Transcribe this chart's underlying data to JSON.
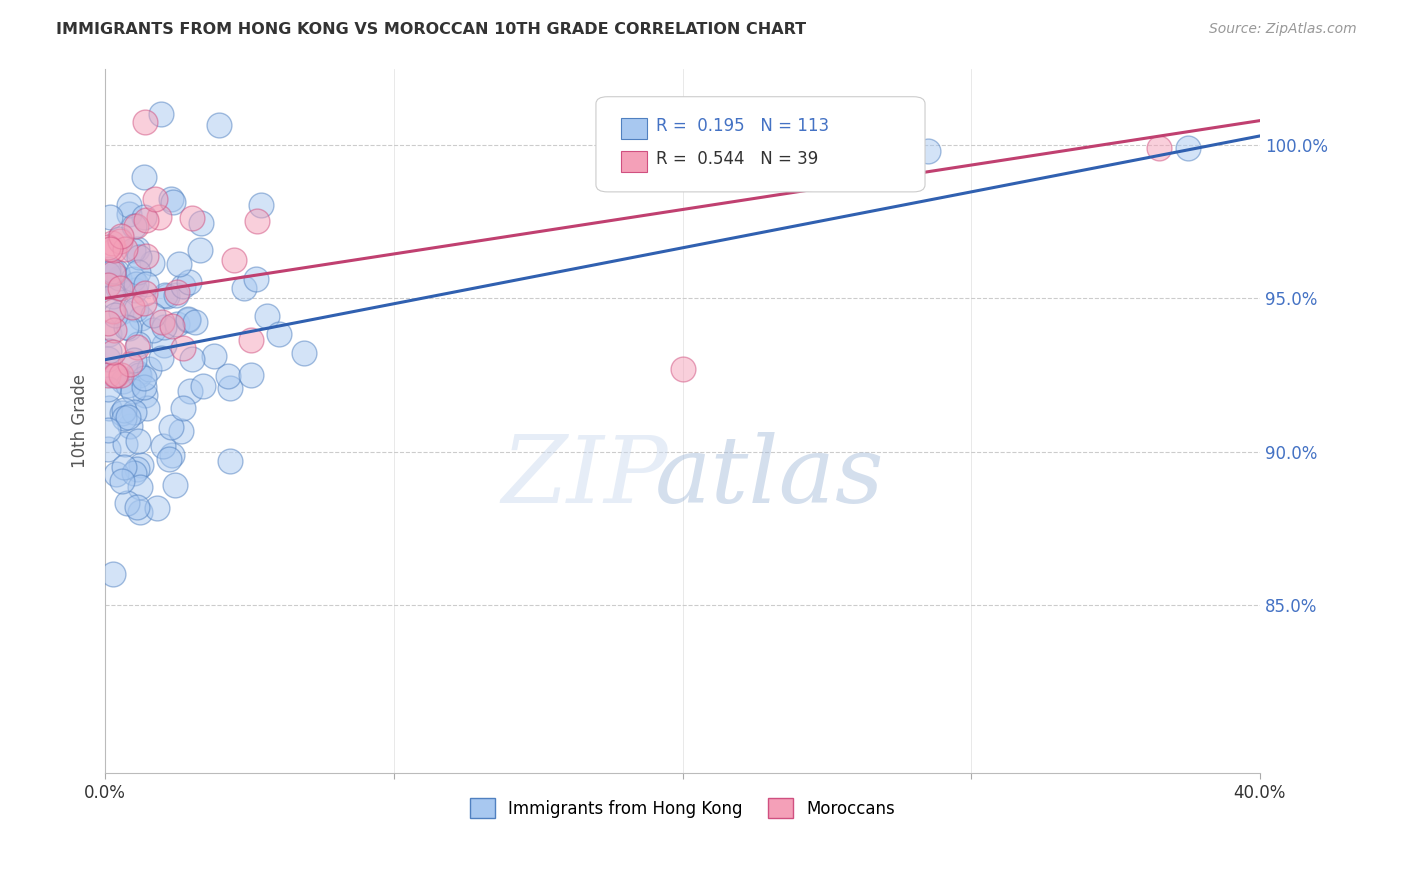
{
  "title": "IMMIGRANTS FROM HONG KONG VS MOROCCAN 10TH GRADE CORRELATION CHART",
  "source": "Source: ZipAtlas.com",
  "ylabel": "10th Grade",
  "yaxis_labels": [
    "100.0%",
    "95.0%",
    "90.0%",
    "85.0%"
  ],
  "yaxis_values": [
    1.0,
    0.95,
    0.9,
    0.85
  ],
  "legend_label_blue": "Immigrants from Hong Kong",
  "legend_label_pink": "Moroccans",
  "r_blue": 0.195,
  "n_blue": 113,
  "r_pink": 0.544,
  "n_pink": 39,
  "color_blue": "#A8C8F0",
  "color_pink": "#F4A0B8",
  "edge_blue": "#5080C0",
  "edge_pink": "#D05080",
  "line_blue": "#3060B0",
  "line_pink": "#C04070",
  "background": "#ffffff",
  "xmin": 0.0,
  "xmax": 0.4,
  "ymin": 0.795,
  "ymax": 1.025,
  "blue_line_x0": 0.0,
  "blue_line_y0": 0.93,
  "blue_line_x1": 0.4,
  "blue_line_y1": 1.003,
  "pink_line_x0": 0.0,
  "pink_line_y0": 0.95,
  "pink_line_x1": 0.4,
  "pink_line_y1": 1.008
}
